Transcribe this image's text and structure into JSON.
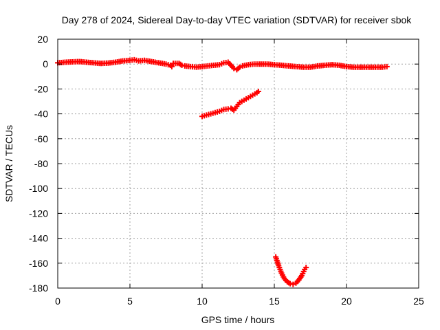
{
  "chart_data": {
    "type": "scatter",
    "title": "Day 278 of 2024, Sidereal Day-to-day VTEC variation (SDTVAR) for receiver sbok",
    "xlabel": "GPS time / hours",
    "ylabel": "SDTVAR / TECUs",
    "xlim": [
      0,
      25
    ],
    "ylim": [
      -180,
      20
    ],
    "xticks": [
      0,
      5,
      10,
      15,
      20,
      25
    ],
    "yticks": [
      20,
      0,
      -20,
      -40,
      -60,
      -80,
      -100,
      -120,
      -140,
      -160,
      -180
    ],
    "grid": true,
    "marker": "plus",
    "color": "#ff0000",
    "series": [
      {
        "points": [
          [
            0.0,
            1.0
          ],
          [
            0.5,
            1.5
          ],
          [
            1.0,
            1.8
          ],
          [
            1.5,
            2.0
          ],
          [
            2.0,
            1.5
          ],
          [
            2.5,
            1.0
          ],
          [
            3.0,
            0.5
          ],
          [
            3.5,
            0.8
          ],
          [
            4.0,
            1.5
          ],
          [
            4.5,
            2.5
          ],
          [
            5.0,
            3.0
          ],
          [
            5.3,
            3.5
          ],
          [
            5.6,
            2.5
          ],
          [
            6.0,
            3.0
          ],
          [
            6.5,
            2.0
          ],
          [
            7.0,
            1.0
          ],
          [
            7.5,
            0.0
          ],
          [
            7.8,
            -1.0
          ],
          [
            7.9,
            -2.0
          ],
          [
            8.0,
            0.5
          ],
          [
            8.4,
            0.5
          ],
          [
            8.6,
            -1.0
          ],
          [
            8.8,
            -1.5
          ],
          [
            9.2,
            -2.0
          ],
          [
            9.6,
            -2.5
          ],
          [
            10.0,
            -2.0
          ],
          [
            10.4,
            -1.5
          ],
          [
            10.8,
            -1.0
          ],
          [
            11.2,
            -0.5
          ],
          [
            11.5,
            1.0
          ],
          [
            11.8,
            1.5
          ],
          [
            12.0,
            -1.0
          ],
          [
            12.2,
            -3.5
          ],
          [
            12.4,
            -4.5
          ],
          [
            12.6,
            -2.5
          ],
          [
            12.8,
            -1.5
          ],
          [
            13.2,
            -0.5
          ],
          [
            13.6,
            0.0
          ],
          [
            14.0,
            0.0
          ],
          [
            14.5,
            0.0
          ],
          [
            15.0,
            -0.5
          ],
          [
            15.5,
            -1.0
          ],
          [
            16.0,
            -1.5
          ],
          [
            16.5,
            -2.0
          ],
          [
            17.0,
            -2.5
          ],
          [
            17.5,
            -2.5
          ],
          [
            18.0,
            -1.5
          ],
          [
            18.5,
            -1.0
          ],
          [
            19.0,
            -0.5
          ],
          [
            19.5,
            -1.0
          ],
          [
            20.0,
            -2.0
          ],
          [
            20.5,
            -2.5
          ],
          [
            21.0,
            -2.5
          ],
          [
            21.5,
            -2.5
          ],
          [
            22.0,
            -2.5
          ],
          [
            22.5,
            -2.5
          ],
          [
            22.8,
            -2.0
          ]
        ]
      },
      {
        "points": [
          [
            10.0,
            -42.0
          ],
          [
            10.3,
            -41.0
          ],
          [
            10.6,
            -40.0
          ],
          [
            10.9,
            -39.0
          ],
          [
            11.2,
            -38.0
          ],
          [
            11.5,
            -36.5
          ],
          [
            11.8,
            -36.0
          ],
          [
            12.0,
            -35.5
          ],
          [
            12.2,
            -37.0
          ],
          [
            12.4,
            -34.0
          ],
          [
            12.6,
            -31.0
          ],
          [
            12.9,
            -29.0
          ],
          [
            13.2,
            -27.0
          ],
          [
            13.5,
            -25.0
          ],
          [
            13.8,
            -23.0
          ],
          [
            13.9,
            -22.0
          ]
        ]
      },
      {
        "points": [
          [
            15.1,
            -155.0
          ],
          [
            15.3,
            -162.0
          ],
          [
            15.5,
            -168.0
          ],
          [
            15.7,
            -172.5
          ],
          [
            15.9,
            -175.0
          ],
          [
            16.1,
            -176.5
          ],
          [
            16.3,
            -177.0
          ],
          [
            16.5,
            -176.0
          ],
          [
            16.7,
            -173.5
          ],
          [
            16.9,
            -170.0
          ],
          [
            17.1,
            -165.0
          ],
          [
            17.2,
            -163.5
          ]
        ]
      }
    ]
  }
}
